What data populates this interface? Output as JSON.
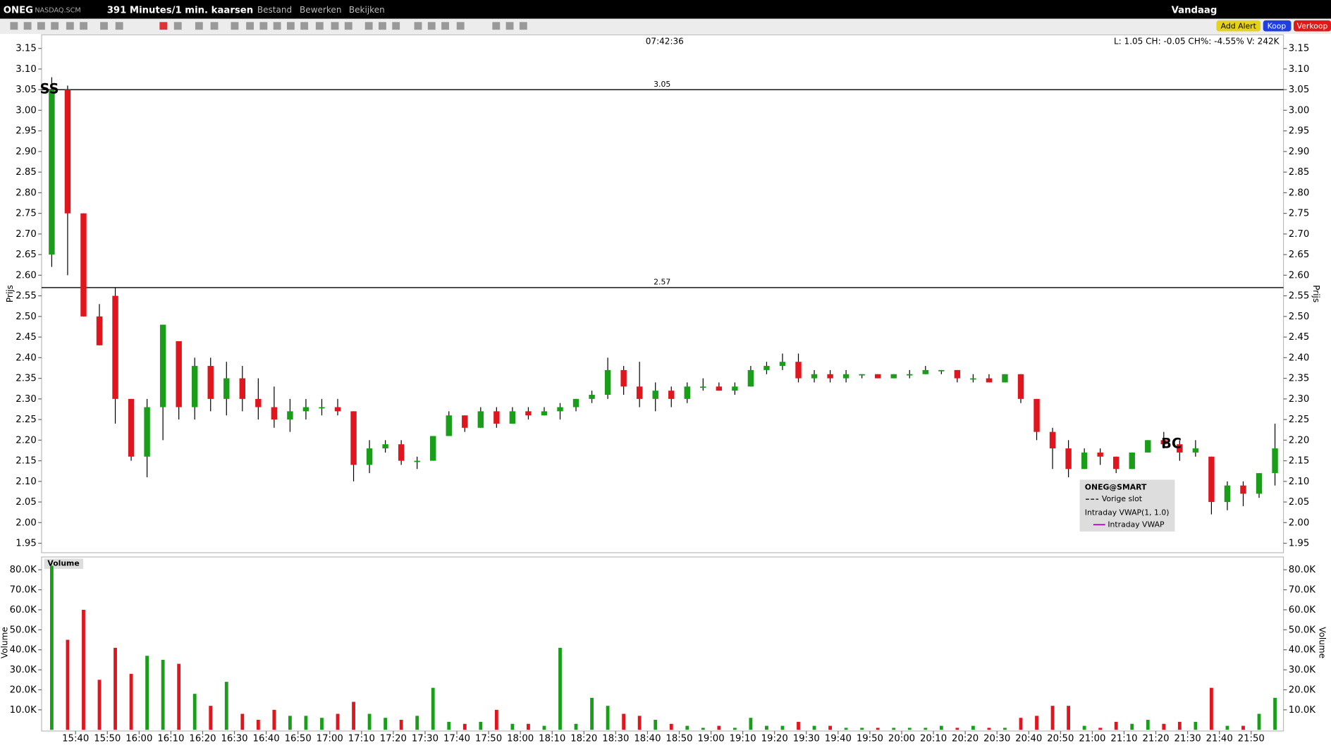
{
  "topbar": {
    "symbol": "ONEG",
    "exchange": "NASDAQ.SCM",
    "period": "391 Minutes/1 min. kaarsen",
    "menu": [
      "Bestand",
      "Bewerken",
      "Bekijken"
    ],
    "range": "Vandaag",
    "buttons": [
      "Add Alert",
      "Koop",
      "Verkoop"
    ]
  },
  "chart_data": {
    "type": "candlestick",
    "clock": "07:42:36",
    "info": "L: 1.05 CH: -0.05 CH%: -4.55% V: 242K",
    "annotations": [
      "SS",
      "BC"
    ],
    "up_color": "#1a9e1a",
    "down_color": "#e0161e",
    "x": [
      "15:30",
      "15:35",
      "15:40",
      "15:45",
      "15:50",
      "15:55",
      "16:00",
      "16:05",
      "16:10",
      "16:15",
      "16:20",
      "16:25",
      "16:30",
      "16:35",
      "16:40",
      "16:45",
      "16:50",
      "16:55",
      "17:00",
      "17:05",
      "17:10",
      "17:15",
      "17:20",
      "17:25",
      "17:30",
      "17:35",
      "17:40",
      "17:45",
      "17:50",
      "17:55",
      "18:00",
      "18:05",
      "18:10",
      "18:15",
      "18:20",
      "18:25",
      "18:30",
      "18:35",
      "18:40",
      "18:45",
      "18:50",
      "18:55",
      "19:00",
      "19:05",
      "19:10",
      "19:15",
      "19:20",
      "19:25",
      "19:30",
      "19:35",
      "19:40",
      "19:45",
      "19:50",
      "19:55",
      "20:00",
      "20:05",
      "20:10",
      "20:15",
      "20:20",
      "20:25",
      "20:30",
      "20:35",
      "20:40",
      "20:45",
      "20:50",
      "20:55",
      "21:00",
      "21:05",
      "21:10",
      "21:15",
      "21:20",
      "21:25",
      "21:30",
      "21:35",
      "21:40",
      "21:45",
      "21:50",
      "21:55"
    ],
    "open": [
      2.65,
      3.05,
      2.75,
      2.5,
      2.55,
      2.3,
      2.16,
      2.28,
      2.44,
      2.28,
      2.38,
      2.3,
      2.35,
      2.3,
      2.28,
      2.25,
      2.27,
      2.28,
      2.28,
      2.27,
      2.14,
      2.18,
      2.19,
      2.15,
      2.15,
      2.21,
      2.26,
      2.23,
      2.27,
      2.24,
      2.27,
      2.26,
      2.27,
      2.28,
      2.3,
      2.31,
      2.37,
      2.33,
      2.3,
      2.32,
      2.3,
      2.33,
      2.33,
      2.32,
      2.33,
      2.37,
      2.38,
      2.39,
      2.35,
      2.36,
      2.35,
      2.36,
      2.36,
      2.35,
      2.36,
      2.36,
      2.37,
      2.37,
      2.35,
      2.35,
      2.34,
      2.36,
      2.3,
      2.22,
      2.18,
      2.13,
      2.17,
      2.16,
      2.13,
      2.17,
      2.2,
      2.19,
      2.17,
      2.16,
      2.05,
      2.09,
      2.07,
      2.12
    ],
    "high": [
      3.08,
      3.06,
      2.75,
      2.53,
      2.57,
      2.3,
      2.3,
      2.48,
      2.44,
      2.4,
      2.4,
      2.39,
      2.38,
      2.35,
      2.33,
      2.3,
      2.3,
      2.3,
      2.3,
      2.27,
      2.2,
      2.2,
      2.2,
      2.16,
      2.21,
      2.27,
      2.26,
      2.28,
      2.28,
      2.28,
      2.28,
      2.28,
      2.29,
      2.3,
      2.32,
      2.4,
      2.38,
      2.39,
      2.34,
      2.33,
      2.34,
      2.35,
      2.34,
      2.34,
      2.38,
      2.39,
      2.41,
      2.41,
      2.37,
      2.37,
      2.37,
      2.36,
      2.36,
      2.36,
      2.37,
      2.38,
      2.37,
      2.37,
      2.36,
      2.36,
      2.36,
      2.36,
      2.3,
      2.23,
      2.2,
      2.18,
      2.18,
      2.16,
      2.17,
      2.2,
      2.22,
      2.2,
      2.2,
      2.16,
      2.1,
      2.1,
      2.12,
      2.24
    ],
    "low": [
      2.62,
      2.6,
      2.5,
      2.43,
      2.24,
      2.15,
      2.11,
      2.2,
      2.25,
      2.25,
      2.27,
      2.26,
      2.27,
      2.25,
      2.23,
      2.22,
      2.25,
      2.26,
      2.26,
      2.1,
      2.12,
      2.17,
      2.14,
      2.13,
      2.15,
      2.21,
      2.22,
      2.23,
      2.23,
      2.24,
      2.25,
      2.26,
      2.25,
      2.27,
      2.29,
      2.3,
      2.31,
      2.28,
      2.27,
      2.28,
      2.29,
      2.32,
      2.32,
      2.31,
      2.33,
      2.36,
      2.37,
      2.34,
      2.34,
      2.34,
      2.34,
      2.35,
      2.35,
      2.35,
      2.35,
      2.36,
      2.36,
      2.34,
      2.34,
      2.34,
      2.34,
      2.29,
      2.2,
      2.13,
      2.11,
      2.13,
      2.14,
      2.12,
      2.13,
      2.17,
      2.18,
      2.15,
      2.16,
      2.02,
      2.03,
      2.04,
      2.06,
      2.09
    ],
    "close": [
      3.05,
      2.75,
      2.5,
      2.43,
      2.3,
      2.16,
      2.28,
      2.48,
      2.28,
      2.38,
      2.3,
      2.35,
      2.3,
      2.28,
      2.25,
      2.27,
      2.28,
      2.28,
      2.27,
      2.14,
      2.18,
      2.19,
      2.15,
      2.15,
      2.21,
      2.26,
      2.23,
      2.27,
      2.24,
      2.27,
      2.26,
      2.27,
      2.28,
      2.3,
      2.31,
      2.37,
      2.33,
      2.3,
      2.32,
      2.3,
      2.33,
      2.33,
      2.32,
      2.33,
      2.37,
      2.38,
      2.39,
      2.35,
      2.36,
      2.35,
      2.36,
      2.36,
      2.35,
      2.36,
      2.36,
      2.37,
      2.37,
      2.35,
      2.35,
      2.34,
      2.36,
      2.3,
      2.22,
      2.18,
      2.13,
      2.17,
      2.16,
      2.13,
      2.17,
      2.2,
      2.19,
      2.17,
      2.18,
      2.05,
      2.09,
      2.07,
      2.12,
      2.18
    ],
    "ylim": [
      1.927,
      3.183
    ],
    "yticks": [
      3.15,
      {
        "value": 3.1,
        "label": "3.10"
      },
      3.05,
      {
        "value": 3.0,
        "label": "3.00"
      },
      2.95,
      {
        "value": 2.9,
        "label": "2.90"
      },
      2.85,
      {
        "value": 2.8,
        "label": "2.80"
      },
      2.75,
      {
        "value": 2.7,
        "label": "2.70"
      },
      2.65,
      {
        "value": 2.6,
        "label": "2.60"
      },
      2.55,
      {
        "value": 2.5,
        "label": "2.50"
      },
      2.45,
      {
        "value": 2.4,
        "label": "2.40"
      },
      2.35,
      {
        "value": 2.3,
        "label": "2.30"
      },
      2.25,
      {
        "value": 2.2,
        "label": "2.20"
      },
      2.15,
      {
        "value": 2.1,
        "label": "2.10"
      },
      2.05,
      {
        "value": 2.0,
        "label": "2.00"
      },
      1.95
    ],
    "y_label": "Prijs",
    "hlines": [
      3.05,
      2.57
    ],
    "xticks": [
      "15:40",
      "15:50",
      "16:00",
      "16:10",
      "16:20",
      "16:30",
      "16:40",
      "16:50",
      "17:00",
      "17:10",
      "17:20",
      "17:30",
      "17:40",
      "17:50",
      "18:00",
      "18:10",
      "18:20",
      "18:30",
      "18:40",
      "18:50",
      "19:00",
      "19:10",
      "19:20",
      "19:30",
      "19:40",
      "19:50",
      "20:00",
      "20:10",
      "20:20",
      "20:30",
      "20:40",
      "20:50",
      "21:00",
      "21:10",
      "21:20",
      "21:30",
      "21:40",
      "21:50"
    ],
    "legend": {
      "title": "ONEG@SMART",
      "items": [
        "Vorige slot",
        "Intraday VWAP(1, 1.0)",
        "Intraday VWAP"
      ]
    },
    "volume": {
      "label": "Volume",
      "axis_label": "Volume",
      "ylim": [
        0,
        86400
      ],
      "yticks": [
        {
          "value": 80000,
          "label": "80.0K"
        },
        {
          "value": 70000,
          "label": "70.0K"
        },
        {
          "value": 60000,
          "label": "60.0K"
        },
        {
          "value": 50000,
          "label": "50.0K"
        },
        {
          "value": 40000,
          "label": "40.0K"
        },
        {
          "value": 30000,
          "label": "30.0K"
        },
        {
          "value": 20000,
          "label": "20.0K"
        },
        {
          "value": 10000,
          "label": "10.0K"
        }
      ],
      "values": [
        82000,
        45000,
        60000,
        25000,
        41000,
        28000,
        37000,
        35000,
        33000,
        18000,
        12000,
        24000,
        8000,
        5000,
        10000,
        7000,
        7000,
        6000,
        8000,
        14000,
        8000,
        6000,
        5000,
        7000,
        21000,
        4000,
        3000,
        4000,
        10000,
        3000,
        3000,
        2000,
        41000,
        3000,
        16000,
        12000,
        8000,
        7000,
        5000,
        3000,
        2000,
        1000,
        2000,
        1000,
        6000,
        2000,
        2000,
        4000,
        2000,
        2000,
        1000,
        1000,
        1000,
        1000,
        1000,
        1000,
        2000,
        1000,
        2000,
        1000,
        1000,
        6000,
        7000,
        12000,
        12000,
        2000,
        1000,
        4000,
        3000,
        5000,
        3000,
        4000,
        4000,
        21000,
        2000,
        2000,
        8000,
        16000
      ]
    }
  }
}
